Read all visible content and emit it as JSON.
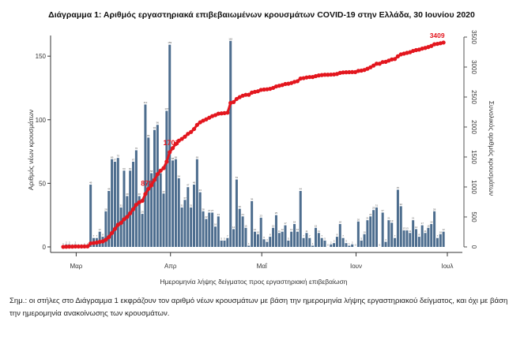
{
  "chart_data": {
    "type": "bar+line",
    "title": "Διάγραμμα 1: Αριθμός εργαστηριακά επιβεβαιωμένων κρουσμάτων COVID-19 στην Ελλάδα, 30 Ιουνίου 2020",
    "xlabel": "Ημερομηνία λήψης δείγματος προς εργαστηριακή επιβεβαίωση",
    "ylabel_left": "Αριθμός νέων κρουσμάτων",
    "ylabel_right": "Συνολικός αριθμός κρουσμάτων",
    "x_ticks": [
      "Μαρ",
      "Απρ",
      "Μαΐ",
      "Ιουν",
      "Ιουλ"
    ],
    "y_left_ticks": [
      "0",
      "50",
      "100",
      "150"
    ],
    "y_right_ticks": [
      "0",
      "500",
      "1000",
      "1500",
      "2000",
      "2500",
      "3000",
      "3500"
    ],
    "ylim_left": [
      0,
      165
    ],
    "ylim_right": [
      0,
      3500
    ],
    "xlim": [
      "2020-02-26",
      "2020-07-01"
    ],
    "grid": false,
    "colors": {
      "bars": "#4d6d8e",
      "cumulative": "#e3161e"
    },
    "series": [
      {
        "kind": "bar",
        "axis": "left",
        "values": [
          1,
          2,
          2,
          0,
          2,
          0,
          0,
          1,
          1,
          49,
          7,
          7,
          12,
          8,
          28,
          44,
          69,
          67,
          70,
          31,
          60,
          40,
          60,
          67,
          76,
          40,
          26,
          112,
          86,
          58,
          92,
          96,
          58,
          42,
          107,
          159,
          68,
          69,
          54,
          31,
          37,
          47,
          31,
          49,
          69,
          43,
          28,
          22,
          27,
          27,
          16,
          24,
          5,
          5,
          7,
          162,
          14,
          53,
          30,
          24,
          15,
          1,
          36,
          12,
          10,
          23,
          6,
          4,
          8,
          15,
          25,
          11,
          12,
          17,
          5,
          12,
          18,
          12,
          44,
          7,
          11,
          7,
          1,
          15,
          11,
          7,
          5,
          0,
          2,
          3,
          8,
          18,
          7,
          3,
          1,
          2,
          0,
          20,
          5,
          10,
          21,
          24,
          29,
          31,
          0,
          27,
          4,
          21,
          19,
          7,
          45,
          32,
          13,
          13,
          11,
          21,
          14,
          8,
          17,
          11,
          15,
          18,
          28,
          7,
          10,
          12
        ]
      },
      {
        "kind": "line-cumulative",
        "axis": "right"
      }
    ],
    "x": [
      "2020-02-26",
      "2020-02-27",
      "2020-02-28",
      "2020-02-29",
      "2020-03-01",
      "2020-03-02",
      "2020-03-03",
      "2020-03-04",
      "2020-03-05",
      "2020-03-06",
      "2020-03-07",
      "2020-03-08",
      "2020-03-09",
      "2020-03-10",
      "2020-03-11",
      "2020-03-12",
      "2020-03-13",
      "2020-03-14",
      "2020-03-15",
      "2020-03-16",
      "2020-03-17",
      "2020-03-18",
      "2020-03-19",
      "2020-03-20",
      "2020-03-21",
      "2020-03-22",
      "2020-03-23",
      "2020-03-24",
      "2020-03-25",
      "2020-03-26",
      "2020-03-27",
      "2020-03-28",
      "2020-03-29",
      "2020-03-30",
      "2020-03-31",
      "2020-04-01",
      "2020-04-02",
      "2020-04-03",
      "2020-04-04",
      "2020-04-05",
      "2020-04-06",
      "2020-04-07",
      "2020-04-08",
      "2020-04-09",
      "2020-04-10",
      "2020-04-11",
      "2020-04-12",
      "2020-04-13",
      "2020-04-14",
      "2020-04-15",
      "2020-04-16",
      "2020-04-17",
      "2020-04-18",
      "2020-04-19",
      "2020-04-20",
      "2020-04-21",
      "2020-04-22",
      "2020-04-23",
      "2020-04-24",
      "2020-04-25",
      "2020-04-26",
      "2020-04-27",
      "2020-04-28",
      "2020-04-29",
      "2020-04-30",
      "2020-05-01",
      "2020-05-02",
      "2020-05-03",
      "2020-05-04",
      "2020-05-05",
      "2020-05-06",
      "2020-05-07",
      "2020-05-08",
      "2020-05-09",
      "2020-05-10",
      "2020-05-11",
      "2020-05-12",
      "2020-05-13",
      "2020-05-14",
      "2020-05-15",
      "2020-05-16",
      "2020-05-17",
      "2020-05-18",
      "2020-05-19",
      "2020-05-20",
      "2020-05-21",
      "2020-05-22",
      "2020-05-23",
      "2020-05-24",
      "2020-05-25",
      "2020-05-26",
      "2020-05-27",
      "2020-05-28",
      "2020-05-29",
      "2020-05-30",
      "2020-05-31",
      "2020-06-01",
      "2020-06-02",
      "2020-06-03",
      "2020-06-04",
      "2020-06-05",
      "2020-06-06",
      "2020-06-07",
      "2020-06-08",
      "2020-06-09",
      "2020-06-10",
      "2020-06-11",
      "2020-06-12",
      "2020-06-13",
      "2020-06-14",
      "2020-06-15",
      "2020-06-16",
      "2020-06-17",
      "2020-06-18",
      "2020-06-19",
      "2020-06-20",
      "2020-06-21",
      "2020-06-22",
      "2020-06-23",
      "2020-06-24",
      "2020-06-25",
      "2020-06-26",
      "2020-06-27",
      "2020-06-28",
      "2020-06-29",
      "2020-06-30"
    ],
    "annotations": [
      {
        "text": "878",
        "x": "2020-03-25"
      },
      {
        "text": "1703",
        "x": "2020-04-02"
      },
      {
        "text": "3409",
        "x": "2020-06-30"
      }
    ]
  },
  "note": "Σημ.: οι στήλες στο Διάγραμμα 1 εκφράζουν τον αριθμό νέων κρουσμάτων με βάση την ημερομηνία λήψης εργαστηριακού δείγματος, και όχι με βάση την ημερομηνία ανακοίνωσης των κρουσμάτων."
}
